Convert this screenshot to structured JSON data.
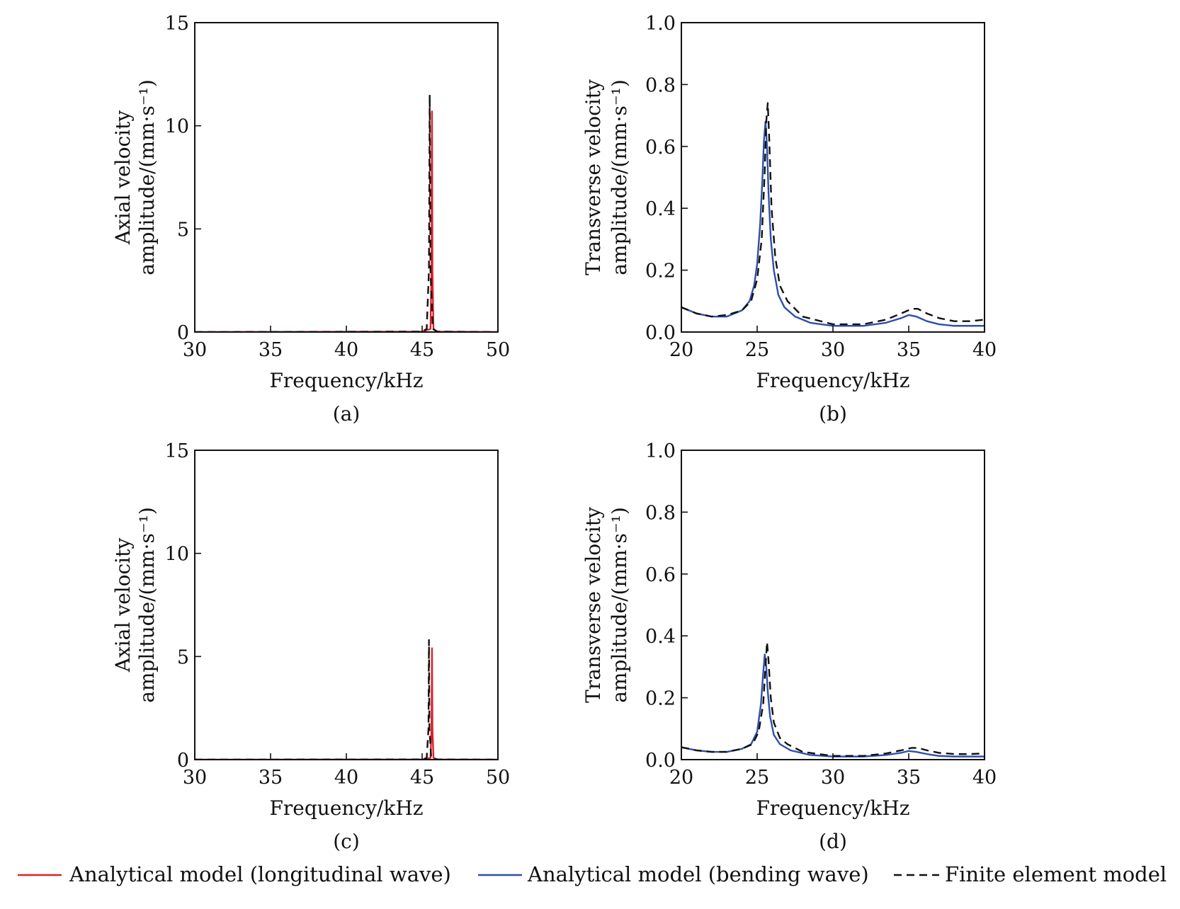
{
  "colors": {
    "longitudinal": "#e0202a",
    "bending": "#2f4fa8",
    "fem": "#111111"
  },
  "legend": {
    "items": [
      {
        "label": "Analytical model (longitudinal wave)",
        "color": "#e0202a",
        "style": "solid"
      },
      {
        "label": "Analytical model (bending wave)",
        "color": "#2f4fa8",
        "style": "solid"
      },
      {
        "label": "Finite element model",
        "color": "#111111",
        "style": "dashed"
      }
    ]
  },
  "chart_data": [
    {
      "id": "a",
      "type": "line",
      "caption": "(a)",
      "xlabel": "Frequency/kHz",
      "ylabel": [
        "Axial velocity",
        "amplitude/(mm·s⁻¹)"
      ],
      "xlim": [
        30,
        50
      ],
      "ylim": [
        0,
        15
      ],
      "xticks": [
        30,
        35,
        40,
        45,
        50
      ],
      "yticks": [
        0,
        5,
        10,
        15
      ],
      "yticklabels": [
        "0",
        "5",
        "10",
        "15"
      ],
      "series": [
        {
          "name": "Analytical model (longitudinal wave)",
          "color": "#e0202a",
          "style": "solid",
          "x": [
            30,
            45.0,
            45.55,
            45.62,
            45.65,
            45.68,
            45.75,
            46.0,
            50
          ],
          "y": [
            0,
            0.02,
            0.15,
            3.0,
            10.7,
            3.0,
            0.15,
            0.02,
            0
          ]
        },
        {
          "name": "Finite element model",
          "color": "#111111",
          "style": "dashed",
          "x": [
            30,
            45.0,
            45.3,
            45.45,
            45.5,
            45.55,
            45.7,
            46.0,
            50
          ],
          "y": [
            0,
            0.02,
            0.15,
            3.0,
            11.5,
            3.0,
            0.15,
            0.02,
            0
          ]
        }
      ]
    },
    {
      "id": "b",
      "type": "line",
      "caption": "(b)",
      "xlabel": "Frequency/kHz",
      "ylabel": [
        "Transverse velocity",
        "amplitude/(mm·s⁻¹)"
      ],
      "xlim": [
        20,
        40
      ],
      "ylim": [
        0,
        1.0
      ],
      "xticks": [
        20,
        25,
        30,
        35,
        40
      ],
      "yticks": [
        0,
        0.2,
        0.4,
        0.6,
        0.8,
        1.0
      ],
      "yticklabels": [
        "0.0",
        "0.2",
        "0.4",
        "0.6",
        "0.8",
        "1.0"
      ],
      "series": [
        {
          "name": "Analytical model (bending wave)",
          "color": "#2f4fa8",
          "style": "solid",
          "x": [
            20,
            21,
            22,
            23,
            24,
            24.5,
            24.8,
            25.0,
            25.2,
            25.35,
            25.45,
            25.55,
            25.65,
            25.75,
            25.9,
            26.1,
            26.4,
            26.8,
            27.5,
            28.5,
            30,
            32,
            33.5,
            34.5,
            35.0,
            35.5,
            36.2,
            37,
            38,
            40
          ],
          "y": [
            0.08,
            0.06,
            0.05,
            0.05,
            0.07,
            0.1,
            0.15,
            0.22,
            0.35,
            0.5,
            0.62,
            0.68,
            0.6,
            0.45,
            0.3,
            0.2,
            0.12,
            0.08,
            0.05,
            0.03,
            0.02,
            0.02,
            0.03,
            0.045,
            0.055,
            0.05,
            0.035,
            0.025,
            0.02,
            0.02
          ]
        },
        {
          "name": "Finite element model",
          "color": "#111111",
          "style": "dashed",
          "x": [
            20,
            21,
            22,
            23,
            24,
            24.6,
            25.0,
            25.3,
            25.5,
            25.6,
            25.7,
            25.8,
            25.95,
            26.2,
            26.5,
            27,
            28,
            30,
            32,
            33.5,
            34.5,
            35.2,
            35.6,
            36.2,
            37,
            38,
            39,
            40
          ],
          "y": [
            0.08,
            0.06,
            0.05,
            0.055,
            0.07,
            0.1,
            0.17,
            0.3,
            0.52,
            0.68,
            0.74,
            0.62,
            0.4,
            0.24,
            0.15,
            0.1,
            0.05,
            0.025,
            0.025,
            0.04,
            0.06,
            0.075,
            0.075,
            0.06,
            0.045,
            0.035,
            0.035,
            0.04
          ]
        }
      ]
    },
    {
      "id": "c",
      "type": "line",
      "caption": "(c)",
      "xlabel": "Frequency/kHz",
      "ylabel": [
        "Axial velocity",
        "amplitude/(mm·s⁻¹)"
      ],
      "xlim": [
        30,
        50
      ],
      "ylim": [
        0,
        15
      ],
      "xticks": [
        30,
        35,
        40,
        45,
        50
      ],
      "yticks": [
        0,
        5,
        10,
        15
      ],
      "yticklabels": [
        "0",
        "5",
        "10",
        "15"
      ],
      "series": [
        {
          "name": "Analytical model (longitudinal wave)",
          "color": "#e0202a",
          "style": "solid",
          "x": [
            30,
            45.0,
            45.55,
            45.62,
            45.65,
            45.68,
            45.75,
            46.0,
            50
          ],
          "y": [
            0,
            0.01,
            0.08,
            1.5,
            5.4,
            1.5,
            0.08,
            0.01,
            0
          ]
        },
        {
          "name": "Finite element model",
          "color": "#111111",
          "style": "dashed",
          "x": [
            30,
            45.0,
            45.3,
            45.42,
            45.45,
            45.48,
            45.6,
            46.0,
            50
          ],
          "y": [
            0,
            0.01,
            0.08,
            1.5,
            5.8,
            1.5,
            0.08,
            0.01,
            0
          ]
        }
      ]
    },
    {
      "id": "d",
      "type": "line",
      "caption": "(d)",
      "xlabel": "Frequency/kHz",
      "ylabel": [
        "Transverse velocity",
        "amplitude/(mm·s⁻¹)"
      ],
      "xlim": [
        20,
        40
      ],
      "ylim": [
        0,
        1.0
      ],
      "xticks": [
        20,
        25,
        30,
        35,
        40
      ],
      "yticks": [
        0,
        0.2,
        0.4,
        0.6,
        0.8,
        1.0
      ],
      "yticklabels": [
        "0.0",
        "0.2",
        "0.4",
        "0.6",
        "0.8",
        "1.0"
      ],
      "series": [
        {
          "name": "Analytical model (bending wave)",
          "color": "#2f4fa8",
          "style": "solid",
          "x": [
            20,
            21,
            22,
            23,
            24,
            24.6,
            25.0,
            25.25,
            25.4,
            25.5,
            25.6,
            25.7,
            25.85,
            26.1,
            26.5,
            27.2,
            28.5,
            30,
            32,
            33.5,
            34.5,
            35.0,
            35.5,
            36.2,
            37,
            38,
            40
          ],
          "y": [
            0.04,
            0.03,
            0.025,
            0.025,
            0.035,
            0.05,
            0.09,
            0.18,
            0.28,
            0.34,
            0.3,
            0.22,
            0.14,
            0.08,
            0.05,
            0.03,
            0.015,
            0.01,
            0.01,
            0.015,
            0.022,
            0.028,
            0.025,
            0.018,
            0.012,
            0.01,
            0.01
          ]
        },
        {
          "name": "Finite element model",
          "color": "#111111",
          "style": "dashed",
          "x": [
            20,
            21,
            22,
            23,
            24,
            24.7,
            25.1,
            25.4,
            25.55,
            25.65,
            25.75,
            25.9,
            26.1,
            26.5,
            27,
            28,
            30,
            32,
            33.5,
            34.5,
            35.2,
            35.6,
            36.2,
            37,
            38,
            39,
            40
          ],
          "y": [
            0.04,
            0.03,
            0.025,
            0.025,
            0.035,
            0.05,
            0.09,
            0.18,
            0.3,
            0.38,
            0.32,
            0.2,
            0.12,
            0.07,
            0.05,
            0.025,
            0.012,
            0.012,
            0.02,
            0.03,
            0.038,
            0.038,
            0.03,
            0.022,
            0.018,
            0.018,
            0.02
          ]
        }
      ]
    }
  ]
}
